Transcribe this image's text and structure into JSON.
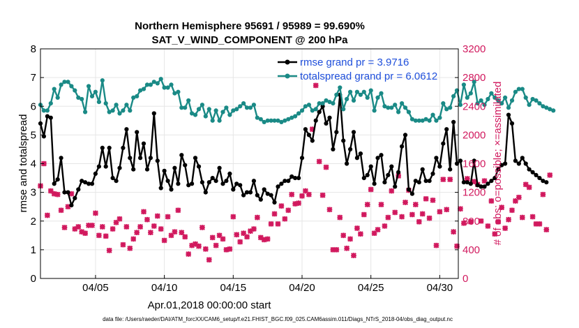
{
  "colors": {
    "rmse": "#000000",
    "spread": "#1a8a86",
    "obs": "#d1195e",
    "legend_text": "#1f4fdb",
    "grid": "#e6e6e6"
  },
  "chart_data": {
    "type": "line",
    "title_line1": "Northern Hemisphere 95691 / 95989 = 99.690%",
    "title_line2": "SAT_V_WIND_COMPONENT @ 200 hPa",
    "xlabel": "Apr.01,2018 00:00:00 start",
    "ylabel_left": "rmse and totalspread",
    "ylabel_right": "# of obs: o=possible; ×=assimilated",
    "footer": "data file: /Users/raeder/DAI/ATM_forcXX/CAM6_setup/f.e21.FHIST_BGC.f09_025.CAM6assim.011/Diags_NTrS_2018-04/obs_diag_output.nc",
    "xlim": [
      1.0,
      31.35
    ],
    "ylim_left": [
      0,
      8
    ],
    "ylim_right": [
      0,
      3200
    ],
    "yticks_left": [
      "0",
      "1",
      "2",
      "3",
      "4",
      "5",
      "6",
      "7",
      "8"
    ],
    "yticks_right": [
      "0",
      "400",
      "800",
      "1200",
      "1600",
      "2000",
      "2400",
      "2800",
      "3200"
    ],
    "xticks": [
      {
        "v": 5,
        "label": "04/05"
      },
      {
        "v": 10,
        "label": "04/10"
      },
      {
        "v": 15,
        "label": "04/15"
      },
      {
        "v": 20,
        "label": "04/20"
      },
      {
        "v": 25,
        "label": "04/25"
      },
      {
        "v": 30,
        "label": "04/30"
      }
    ],
    "x_start": 1.0,
    "x_step": 0.25,
    "series": [
      {
        "name": "rmse grand pr = 3.9716",
        "values": [
          5.4,
          4.95,
          5.65,
          5.6,
          3.3,
          3.45,
          4.2,
          3.0,
          3.0,
          2.55,
          2.8,
          3.1,
          3.4,
          3.35,
          3.3,
          3.3,
          3.65,
          3.9,
          4.55,
          3.9,
          4.55,
          3.5,
          3.4,
          3.85,
          4.55,
          5.2,
          4.2,
          3.8,
          5.1,
          4.2,
          4.7,
          3.8,
          4.2,
          5.75,
          4.1,
          3.15,
          3.75,
          3.4,
          3.1,
          3.85,
          3.3,
          4.3,
          3.95,
          3.25,
          3.3,
          4.2,
          3.9,
          3.35,
          3.0,
          3.35,
          3.5,
          3.4,
          3.85,
          3.3,
          3.4,
          3.65,
          3.1,
          3.3,
          3.25,
          2.9,
          3.0,
          3.0,
          3.4,
          2.9,
          2.75,
          3.1,
          2.95,
          2.9,
          2.65,
          3.2,
          3.3,
          3.4,
          3.4,
          3.55,
          3.5,
          3.5,
          4.2,
          5.2,
          5.0,
          4.8,
          5.5,
          5.8,
          6.0,
          5.4,
          5.6,
          4.5,
          5.1,
          6.4,
          4.8,
          4.0,
          4.5,
          5.1,
          4.2,
          4.35,
          3.5,
          3.6,
          3.9,
          3.3,
          4.2,
          4.3,
          3.35,
          3.6,
          3.9,
          3.2,
          3.7,
          4.6,
          5.0,
          3.1,
          2.95,
          3.4,
          3.35,
          3.8,
          3.4,
          3.4,
          3.65,
          4.2,
          3.9,
          4.7,
          5.2,
          3.8,
          5.45,
          4.0,
          4.1,
          3.35,
          3.35,
          3.3,
          4.1,
          3.25,
          3.2,
          3.2,
          3.3,
          3.4,
          3.5,
          3.8,
          3.95,
          4.0,
          5.7,
          5.4,
          4.1,
          4.0,
          4.2,
          4.0,
          3.8,
          3.7,
          3.6,
          3.5,
          3.4,
          3.35
        ]
      },
      {
        "name": "totalspread grand pr = 6.0612",
        "values": [
          6.05,
          5.85,
          5.85,
          6.1,
          6.6,
          6.3,
          6.75,
          6.85,
          6.85,
          6.7,
          6.55,
          6.3,
          6.25,
          5.8,
          6.7,
          6.35,
          6.5,
          6.15,
          6.9,
          6.1,
          5.8,
          5.85,
          6.05,
          5.75,
          5.85,
          6.05,
          5.85,
          6.3,
          6.35,
          6.55,
          6.6,
          6.75,
          6.75,
          6.85,
          6.8,
          6.95,
          6.65,
          6.65,
          6.75,
          6.45,
          6.5,
          5.95,
          5.95,
          6.2,
          5.75,
          5.7,
          5.9,
          6.05,
          5.65,
          5.9,
          5.5,
          5.85,
          5.5,
          5.8,
          5.95,
          5.7,
          5.85,
          5.9,
          6.0,
          6.1,
          5.95,
          5.95,
          6.05,
          5.6,
          5.55,
          5.45,
          5.5,
          5.5,
          5.5,
          5.5,
          5.45,
          5.5,
          5.55,
          5.6,
          5.65,
          5.75,
          5.85,
          6.0,
          6.05,
          5.85,
          5.9,
          6.1,
          6.1,
          6.2,
          6.15,
          6.1,
          6.4,
          6.65,
          5.9,
          6.25,
          6.5,
          6.2,
          6.5,
          6.4,
          6.5,
          6.3,
          6.55,
          5.85,
          6.3,
          6.45,
          6.0,
          5.95,
          5.95,
          6.05,
          5.8,
          6.1,
          5.95,
          5.8,
          5.55,
          5.5,
          5.5,
          5.5,
          5.55,
          5.5,
          5.7,
          5.5,
          5.6,
          6.1,
          5.9,
          5.95,
          6.35,
          6.55,
          6.05,
          6.75,
          6.3,
          6.45,
          6.85,
          6.1,
          6.2,
          6.05,
          6.25,
          6.45,
          6.3,
          6.2,
          6.1,
          6.3,
          5.95,
          6.2,
          6.5,
          6.6,
          6.6,
          6.3,
          6.05,
          6.25,
          6.2,
          6.1,
          6.0,
          5.95,
          5.9,
          5.85
        ]
      }
    ],
    "assimilated_obs": {
      "name": "assimilated",
      "values": [
        1290,
        1600,
        880,
        1220,
        1180,
        1170,
        950,
        710,
        1000,
        1180,
        690,
        720,
        650,
        630,
        740,
        740,
        910,
        600,
        720,
        590,
        390,
        690,
        780,
        830,
        470,
        720,
        420,
        550,
        640,
        720,
        930,
        820,
        640,
        730,
        870,
        690,
        530,
        860,
        600,
        650,
        950,
        640,
        580,
        340,
        460,
        480,
        450,
        710,
        410,
        260,
        570,
        460,
        600,
        550,
        400,
        410,
        860,
        610,
        510,
        630,
        580,
        660,
        690,
        850,
        570,
        540,
        550,
        760,
        900,
        760,
        1010,
        830,
        950,
        1170,
        1040,
        1050,
        1150,
        1220,
        1170,
        2080,
        2690,
        1630,
        1160,
        1550,
        960,
        400,
        400,
        850,
        600,
        420,
        550,
        320,
        700,
        620,
        890,
        1030,
        1240,
        630,
        680,
        1030,
        730,
        850,
        1220,
        920,
        1430,
        860,
        1060,
        1230,
        890,
        1030,
        790,
        900,
        1110,
        840,
        1090,
        460,
        930,
        1380,
        960,
        1380,
        650,
        450,
        970,
        770,
        1390,
        790,
        1350,
        1310,
        800,
        1360,
        730,
        1080,
        620,
        790,
        990,
        700,
        820,
        950,
        1080,
        1130,
        850,
        1310,
        1270,
        860,
        760,
        760,
        1170,
        680,
        1440
      ]
    }
  },
  "legend": {
    "rmse_label": "rmse grand pr = 3.9716",
    "spread_label": "totalspread grand pr = 6.0612"
  }
}
